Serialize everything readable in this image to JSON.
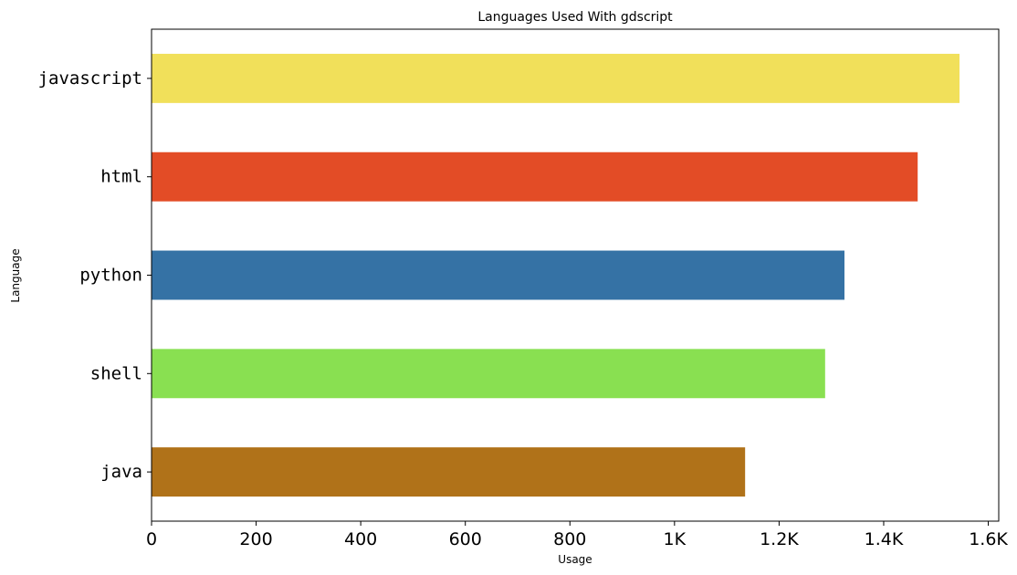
{
  "chart_data": {
    "type": "bar",
    "orientation": "horizontal",
    "title": "Languages Used With gdscript",
    "xlabel": "Usage",
    "ylabel": "Language",
    "categories": [
      "javascript",
      "html",
      "python",
      "shell",
      "java"
    ],
    "values": [
      1545,
      1465,
      1325,
      1288,
      1135
    ],
    "colors": [
      "#f1e05a",
      "#e34c26",
      "#3572a5",
      "#89e051",
      "#b07219"
    ],
    "xlim": [
      0,
      1620
    ],
    "xticks": [
      0,
      200,
      400,
      600,
      800,
      1000,
      1200,
      1400,
      1600
    ],
    "xtick_labels": [
      "0",
      "200",
      "400",
      "600",
      "800",
      "1K",
      "1.2K",
      "1.4K",
      "1.6K"
    ],
    "grid": false,
    "legend": "none"
  }
}
